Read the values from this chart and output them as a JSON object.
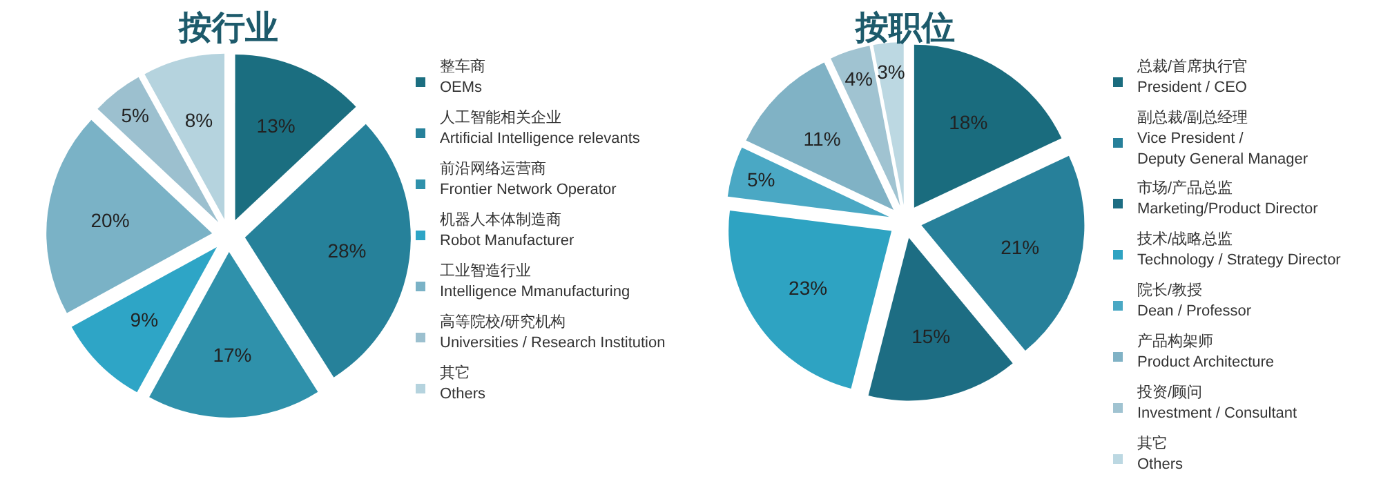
{
  "chart_data": [
    {
      "type": "pie",
      "title": "按行业",
      "legend": "right",
      "categories": [
        "整车商\nOEMs",
        "人工智能相关企业\nArtificial Intelligence relevants",
        "前沿网络运营商\nFrontier Network Operator",
        "机器人本体制造商\nRobot Manufacturer",
        "工业智造行业\nIntelligence Mmanufacturing",
        "高等院校/研究机构\nUniversities / Research Institution",
        "其它\nOthers"
      ],
      "values": [
        13,
        28,
        17,
        9,
        20,
        5,
        8
      ],
      "value_labels": [
        "13%",
        "28%",
        "17%",
        "9%",
        "20%",
        "5%",
        "8%"
      ],
      "colors": [
        "#1b6e80",
        "#26819a",
        "#2f91ab",
        "#2ea5c6",
        "#7ab2c6",
        "#9cc0cf",
        "#b5d3de"
      ]
    },
    {
      "type": "pie",
      "title": "按职位",
      "legend": "right",
      "categories": [
        "总裁/首席执行官\nPresident / CEO",
        "副总裁/副总经理\nVice President /\nDeputy General Manager",
        "市场/产品总监\nMarketing/Product Director",
        "技术/战略总监\nTechnology / Strategy Director",
        "院长/教授\nDean / Professor",
        "产品构架师\nProduct Architecture",
        "投资/顾问\nInvestment / Consultant",
        "其它\nOthers"
      ],
      "values": [
        18,
        21,
        15,
        23,
        5,
        11,
        4,
        3
      ],
      "value_labels": [
        "18%",
        "21%",
        "15%",
        "23%",
        "5%",
        "11%",
        "4%",
        "3%"
      ],
      "colors": [
        "#1a6c7e",
        "#27809a",
        "#1d6d83",
        "#2ea3c2",
        "#4aa8c4",
        "#80b2c5",
        "#a0c3d1",
        "#bcd8e2"
      ]
    }
  ]
}
